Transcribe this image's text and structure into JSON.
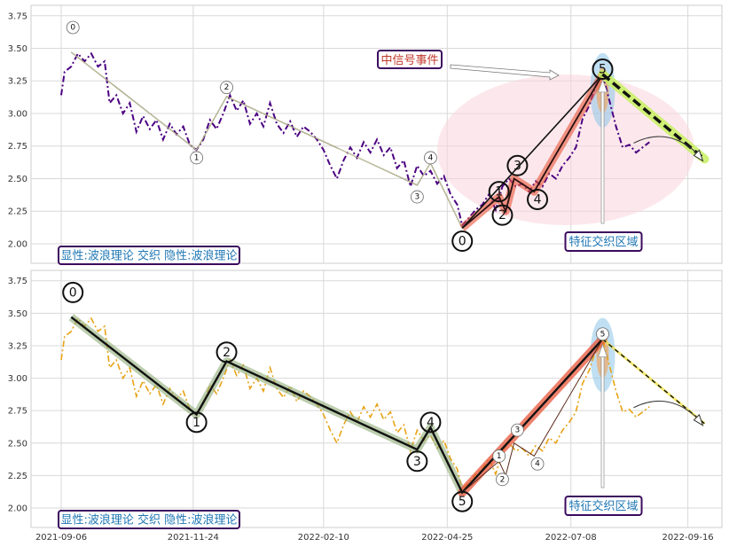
{
  "chart_data": [
    {
      "type": "line",
      "panel": "top",
      "line_color": "#4b0082",
      "line_style": "dash-dot",
      "x_ticks": [
        "2021-09-06",
        "2021-11-24",
        "2022-02-10",
        "2022-04-25",
        "2022-07-08",
        "2022-09-16"
      ],
      "xlim": [
        "2021-09-06",
        "2022-09-30"
      ],
      "ylim": [
        1.85,
        3.83
      ],
      "y_ticks": [
        "2.00",
        "2.25",
        "2.50",
        "2.75",
        "3.00",
        "3.25",
        "3.50",
        "3.75"
      ],
      "grid": true,
      "price_series": [
        [
          "2021-09-06",
          3.14
        ],
        [
          "2021-09-08",
          3.32
        ],
        [
          "2021-09-12",
          3.36
        ],
        [
          "2021-09-16",
          3.46
        ],
        [
          "2021-09-20",
          3.4
        ],
        [
          "2021-09-24",
          3.46
        ],
        [
          "2021-09-28",
          3.36
        ],
        [
          "2021-10-02",
          3.4
        ],
        [
          "2021-10-05",
          3.08
        ],
        [
          "2021-10-09",
          3.14
        ],
        [
          "2021-10-13",
          3.0
        ],
        [
          "2021-10-17",
          3.08
        ],
        [
          "2021-10-21",
          2.86
        ],
        [
          "2021-10-25",
          2.98
        ],
        [
          "2021-10-29",
          2.88
        ],
        [
          "2021-11-02",
          2.95
        ],
        [
          "2021-11-06",
          2.8
        ],
        [
          "2021-11-10",
          2.92
        ],
        [
          "2021-11-14",
          2.84
        ],
        [
          "2021-11-18",
          2.9
        ],
        [
          "2021-11-22",
          2.76
        ],
        [
          "2021-11-26",
          2.72
        ],
        [
          "2021-11-30",
          2.8
        ],
        [
          "2021-12-04",
          2.95
        ],
        [
          "2021-12-08",
          2.88
        ],
        [
          "2021-12-12",
          3.0
        ],
        [
          "2021-12-16",
          3.14
        ],
        [
          "2021-12-20",
          3.02
        ],
        [
          "2021-12-24",
          3.1
        ],
        [
          "2021-12-28",
          2.92
        ],
        [
          "2022-01-01",
          3.0
        ],
        [
          "2022-01-05",
          2.9
        ],
        [
          "2022-01-09",
          3.08
        ],
        [
          "2022-01-13",
          2.92
        ],
        [
          "2022-01-17",
          2.85
        ],
        [
          "2022-01-21",
          2.94
        ],
        [
          "2022-01-25",
          2.82
        ],
        [
          "2022-01-29",
          2.9
        ],
        [
          "2022-02-02",
          2.86
        ],
        [
          "2022-02-06",
          2.8
        ],
        [
          "2022-02-10",
          2.72
        ],
        [
          "2022-02-14",
          2.6
        ],
        [
          "2022-02-18",
          2.5
        ],
        [
          "2022-02-22",
          2.64
        ],
        [
          "2022-02-26",
          2.74
        ],
        [
          "2022-03-02",
          2.66
        ],
        [
          "2022-03-06",
          2.78
        ],
        [
          "2022-03-10",
          2.7
        ],
        [
          "2022-03-14",
          2.8
        ],
        [
          "2022-03-18",
          2.68
        ],
        [
          "2022-03-22",
          2.74
        ],
        [
          "2022-03-26",
          2.58
        ],
        [
          "2022-03-30",
          2.64
        ],
        [
          "2022-04-03",
          2.44
        ],
        [
          "2022-04-07",
          2.6
        ],
        [
          "2022-04-11",
          2.52
        ],
        [
          "2022-04-15",
          2.56
        ],
        [
          "2022-04-19",
          2.46
        ],
        [
          "2022-04-23",
          2.52
        ],
        [
          "2022-04-27",
          2.38
        ],
        [
          "2022-05-01",
          2.3
        ],
        [
          "2022-05-04",
          2.14
        ],
        [
          "2022-05-08",
          2.2
        ],
        [
          "2022-05-12",
          2.26
        ],
        [
          "2022-05-16",
          2.3
        ],
        [
          "2022-05-20",
          2.38
        ],
        [
          "2022-05-24",
          2.26
        ],
        [
          "2022-05-28",
          2.44
        ],
        [
          "2022-06-01",
          2.5
        ],
        [
          "2022-06-05",
          2.44
        ],
        [
          "2022-06-09",
          2.46
        ],
        [
          "2022-06-13",
          2.4
        ],
        [
          "2022-06-17",
          2.48
        ],
        [
          "2022-06-21",
          2.44
        ],
        [
          "2022-06-25",
          2.54
        ],
        [
          "2022-06-29",
          2.5
        ],
        [
          "2022-07-03",
          2.6
        ],
        [
          "2022-07-07",
          2.66
        ],
        [
          "2022-07-11",
          2.74
        ],
        [
          "2022-07-15",
          2.96
        ],
        [
          "2022-07-19",
          3.06
        ],
        [
          "2022-07-23",
          3.22
        ],
        [
          "2022-07-27",
          3.3
        ],
        [
          "2022-07-31",
          3.1
        ],
        [
          "2022-08-04",
          2.9
        ],
        [
          "2022-08-08",
          2.74
        ],
        [
          "2022-08-12",
          2.76
        ],
        [
          "2022-08-16",
          2.7
        ],
        [
          "2022-08-20",
          2.74
        ],
        [
          "2022-08-24",
          2.78
        ]
      ],
      "wave_path": [
        [
          "2021-09-12",
          3.47
        ],
        [
          "2021-11-26",
          2.72
        ],
        [
          "2021-12-14",
          3.13
        ],
        [
          "2022-04-07",
          2.45
        ],
        [
          "2022-04-15",
          2.62
        ],
        [
          "2022-05-04",
          2.12
        ]
      ],
      "wave_labels": [
        {
          "label": "0",
          "date": "2021-09-13",
          "value": 3.66
        },
        {
          "label": "1",
          "date": "2021-11-26",
          "value": 2.66
        },
        {
          "label": "2",
          "date": "2021-12-14",
          "value": 3.2
        },
        {
          "label": "3",
          "date": "2022-04-07",
          "value": 2.36
        },
        {
          "label": "4",
          "date": "2022-04-15",
          "value": 2.66
        }
      ],
      "sub_wave_path": [
        [
          "2022-05-04",
          2.12
        ],
        [
          "2022-05-26",
          2.36
        ],
        [
          "2022-05-30",
          2.25
        ],
        [
          "2022-06-04",
          2.5
        ],
        [
          "2022-06-16",
          2.4
        ],
        [
          "2022-07-27",
          3.3
        ]
      ],
      "sub_wave_labels": [
        {
          "label": "0",
          "date": "2022-05-04",
          "value": 2.02
        },
        {
          "label": "1",
          "date": "2022-05-26",
          "value": 2.4
        },
        {
          "label": "2",
          "date": "2022-05-28",
          "value": 2.22
        },
        {
          "label": "3",
          "date": "2022-06-06",
          "value": 2.6
        },
        {
          "label": "4",
          "date": "2022-06-18",
          "value": 2.34
        },
        {
          "label": "5",
          "date": "2022-07-27",
          "value": 3.34
        }
      ],
      "forecast": [
        [
          "2022-07-27",
          3.3
        ],
        [
          "2022-09-26",
          2.65
        ]
      ],
      "signal_label": "中信号事件",
      "zone_label": "特征交织区域",
      "legend_label": "显性:波浪理论 交织 隐性:波浪理论"
    },
    {
      "type": "line",
      "panel": "bottom",
      "line_color": "#e8a317",
      "line_style": "dash-dot",
      "x_ticks": [
        "2021-09-06",
        "2021-11-24",
        "2022-02-10",
        "2022-04-25",
        "2022-07-08",
        "2022-09-16"
      ],
      "xlim": [
        "2021-09-06",
        "2022-09-30"
      ],
      "ylim": [
        1.85,
        3.83
      ],
      "y_ticks": [
        "2.00",
        "2.25",
        "2.50",
        "2.75",
        "3.00",
        "3.25",
        "3.50",
        "3.75"
      ],
      "grid": true,
      "wave_path": [
        [
          "2021-09-12",
          3.47
        ],
        [
          "2021-11-26",
          2.72
        ],
        [
          "2021-12-14",
          3.13
        ],
        [
          "2022-04-07",
          2.45
        ],
        [
          "2022-04-15",
          2.62
        ],
        [
          "2022-05-04",
          2.12
        ],
        [
          "2022-07-27",
          3.3
        ]
      ],
      "wave_labels": [
        {
          "label": "0",
          "date": "2021-09-13",
          "value": 3.66
        },
        {
          "label": "1",
          "date": "2021-11-26",
          "value": 2.66
        },
        {
          "label": "2",
          "date": "2021-12-14",
          "value": 3.2
        },
        {
          "label": "3",
          "date": "2022-04-07",
          "value": 2.36
        },
        {
          "label": "4",
          "date": "2022-04-15",
          "value": 2.66
        },
        {
          "label": "5",
          "date": "2022-05-04",
          "value": 2.05
        }
      ],
      "sub_wave_path": [
        [
          "2022-05-04",
          2.12
        ],
        [
          "2022-05-26",
          2.36
        ],
        [
          "2022-05-30",
          2.25
        ],
        [
          "2022-06-04",
          2.5
        ],
        [
          "2022-06-16",
          2.4
        ],
        [
          "2022-07-27",
          3.3
        ]
      ],
      "sub_wave_labels": [
        {
          "label": "1",
          "date": "2022-05-26",
          "value": 2.4
        },
        {
          "label": "2",
          "date": "2022-05-28",
          "value": 2.22
        },
        {
          "label": "3",
          "date": "2022-06-06",
          "value": 2.6
        },
        {
          "label": "4",
          "date": "2022-06-18",
          "value": 2.34
        },
        {
          "label": "5",
          "date": "2022-07-27",
          "value": 3.34
        }
      ],
      "forecast": [
        [
          "2022-07-27",
          3.3
        ],
        [
          "2022-09-26",
          2.65
        ]
      ],
      "zone_label": "特征交织区域",
      "legend_label": "显性:波浪理论 交织 隐性:波浪理论"
    }
  ],
  "colors": {
    "wave_line": "#111111",
    "wave_glow": "#8fae78",
    "impulse": "#e8553a",
    "ellipse": "#f9d5dc",
    "peak_blue": "#8cc4e8",
    "peak_orange": "#f0a868",
    "box_border": "#3b0a5e",
    "zone_text": "#1f77b4",
    "signal_text": "#c0392b",
    "forecast_glow": "#c7f060"
  }
}
